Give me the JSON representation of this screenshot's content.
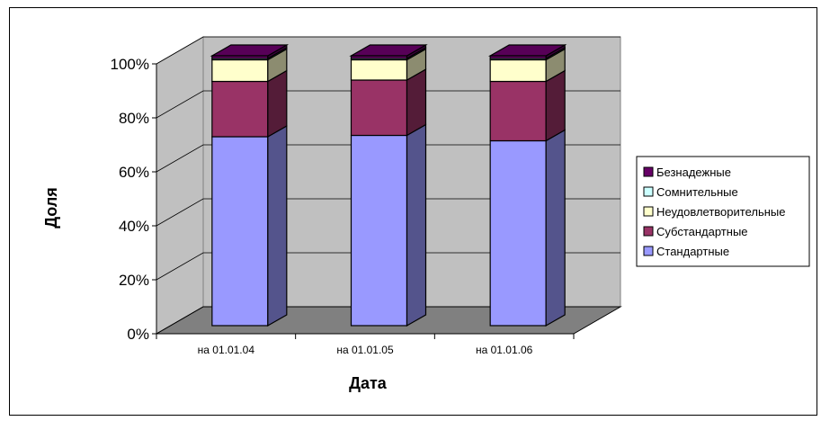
{
  "chart_data": {
    "type": "bar",
    "stacked": true,
    "percent": true,
    "three_d": true,
    "title": "",
    "xlabel": "Дата",
    "ylabel": "Доля",
    "categories": [
      "на 01.01.04",
      "на 01.01.05",
      "на 01.01.06"
    ],
    "yticks": [
      "0%",
      "20%",
      "40%",
      "60%",
      "80%",
      "100%"
    ],
    "ylim": [
      0,
      100
    ],
    "grid": true,
    "legend_position": "right",
    "series": [
      {
        "name": "Стандартные",
        "values": [
          70,
          70.5,
          68.5
        ],
        "color": "#9999ff"
      },
      {
        "name": "Субстандартные",
        "values": [
          20.5,
          20.5,
          22
        ],
        "color": "#993366"
      },
      {
        "name": "Неудовлетворительные",
        "values": [
          8,
          7.5,
          8
        ],
        "color": "#ffffcc"
      },
      {
        "name": "Сомнительные",
        "values": [
          0.5,
          0.5,
          0.5
        ],
        "color": "#ccffff"
      },
      {
        "name": "Безнадежные",
        "values": [
          1,
          1,
          1
        ],
        "color": "#660066"
      }
    ]
  }
}
